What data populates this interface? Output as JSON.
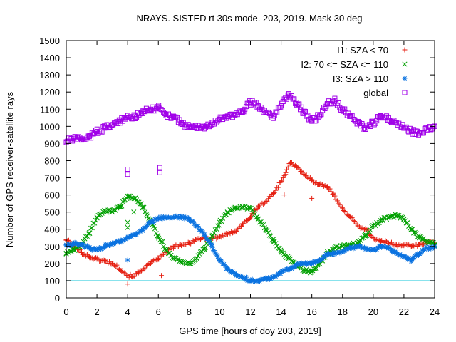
{
  "chart_data": {
    "type": "scatter",
    "title": "NRAYS. SISTED rt 30s mode. 203, 2019. Mask 30 deg",
    "xlabel": "GPS time [hours of doy 203, 2019]",
    "ylabel": "Number of GPS receiver-satellite rays",
    "xlim": [
      0,
      24
    ],
    "ylim": [
      0,
      1500
    ],
    "xticks": [
      0,
      2,
      4,
      6,
      8,
      10,
      12,
      14,
      16,
      18,
      20,
      22,
      24
    ],
    "yticks": [
      0,
      100,
      200,
      300,
      400,
      500,
      600,
      700,
      800,
      900,
      1000,
      1100,
      1200,
      1300,
      1400,
      1500
    ],
    "grid": false,
    "legend_position": "top-right",
    "reference_line": {
      "y": 100,
      "color": "#40d0e0"
    },
    "series": [
      {
        "name": "I1: SZA < 70",
        "marker": "+",
        "color": "#e51e10",
        "x": [
          0,
          0.5,
          1,
          1.5,
          2,
          2.5,
          3,
          3.5,
          4,
          4.3,
          4.7,
          5,
          5.5,
          6,
          6.5,
          7,
          7.5,
          8,
          8.5,
          9,
          9.5,
          10,
          10.5,
          11,
          11.5,
          12,
          12.5,
          13,
          13.5,
          14,
          14.3,
          14.6,
          15,
          15.5,
          16,
          16.5,
          17,
          17.5,
          18,
          18.5,
          19,
          19.5,
          20,
          20.5,
          21,
          21.5,
          22,
          22.5,
          23,
          23.5,
          24
        ],
        "y": [
          340,
          300,
          265,
          240,
          225,
          215,
          200,
          170,
          130,
          125,
          145,
          170,
          200,
          230,
          265,
          300,
          305,
          320,
          340,
          350,
          345,
          355,
          370,
          390,
          430,
          470,
          530,
          560,
          610,
          680,
          730,
          790,
          760,
          720,
          690,
          660,
          650,
          590,
          520,
          470,
          420,
          400,
          350,
          330,
          320,
          310,
          310,
          300,
          310,
          330,
          320
        ]
      },
      {
        "name": "I2: 70 <= SZA <= 110",
        "marker": "x",
        "color": "#00a000",
        "x": [
          0,
          0.5,
          1,
          1.5,
          2,
          2.5,
          3,
          3.5,
          4,
          4.5,
          5,
          5.5,
          6,
          6.5,
          7,
          7.5,
          8,
          8.5,
          9,
          9.5,
          10,
          10.5,
          11,
          11.5,
          12,
          12.5,
          13,
          13.5,
          14,
          14.5,
          15,
          15.5,
          16,
          16.5,
          17,
          17.5,
          18,
          18.5,
          19,
          19.5,
          20,
          20.5,
          21,
          21.5,
          22,
          22.5,
          23,
          23.5,
          24
        ],
        "y": [
          260,
          280,
          310,
          380,
          470,
          510,
          500,
          530,
          590,
          580,
          530,
          440,
          360,
          280,
          230,
          210,
          200,
          230,
          290,
          360,
          440,
          500,
          520,
          530,
          520,
          460,
          400,
          330,
          270,
          230,
          190,
          160,
          150,
          200,
          260,
          290,
          300,
          310,
          320,
          360,
          420,
          450,
          470,
          480,
          460,
          400,
          350,
          330,
          310
        ]
      },
      {
        "name": "I3: SZA > 110",
        "marker": "*",
        "color": "#0a72e0",
        "x": [
          0,
          0.5,
          1,
          1.5,
          2,
          2.5,
          3,
          3.5,
          4,
          4.5,
          5,
          5.5,
          6,
          6.5,
          7,
          7.5,
          8,
          8.5,
          9,
          9.5,
          10,
          10.5,
          11,
          11.5,
          12,
          12.5,
          13,
          13.5,
          14,
          14.5,
          15,
          15.5,
          16,
          16.5,
          17,
          17.5,
          18,
          18.5,
          19,
          19.5,
          20,
          20.5,
          21,
          21.5,
          22,
          22.5,
          23,
          23.5,
          24
        ],
        "y": [
          310,
          315,
          310,
          290,
          280,
          300,
          320,
          330,
          350,
          370,
          400,
          440,
          460,
          470,
          470,
          470,
          460,
          420,
          370,
          300,
          220,
          170,
          140,
          120,
          100,
          100,
          110,
          120,
          150,
          170,
          190,
          200,
          200,
          220,
          250,
          260,
          270,
          290,
          300,
          290,
          280,
          300,
          290,
          260,
          240,
          220,
          260,
          290,
          300
        ]
      },
      {
        "name": "global",
        "marker": "square",
        "color": "#a000e8",
        "x": [
          0,
          0.5,
          1,
          1.5,
          2,
          2.5,
          3,
          3.5,
          4,
          4.5,
          5,
          5.5,
          6,
          6.5,
          7,
          7.5,
          8,
          8.5,
          9,
          9.5,
          10,
          10.5,
          11,
          11.5,
          12,
          12.5,
          13,
          13.5,
          14,
          14.5,
          15,
          15.5,
          16,
          16.5,
          17,
          17.5,
          18,
          18.5,
          19,
          19.5,
          20,
          20.5,
          21,
          21.5,
          22,
          22.5,
          23,
          23.5,
          24
        ],
        "y": [
          910,
          930,
          920,
          940,
          970,
          990,
          1010,
          1030,
          1050,
          1060,
          1090,
          1100,
          1110,
          1070,
          1050,
          1020,
          1000,
          990,
          1000,
          1010,
          1040,
          1060,
          1070,
          1090,
          1140,
          1120,
          1080,
          1060,
          1120,
          1190,
          1140,
          1080,
          1030,
          1060,
          1130,
          1150,
          1100,
          1060,
          1020,
          990,
          1020,
          1060,
          1050,
          1020,
          990,
          970,
          960,
          980,
          1000
        ]
      }
    ],
    "outliers": [
      {
        "series": "I1: SZA < 70",
        "x": [
          4.0,
          6.2,
          16.0,
          14.2
        ],
        "y": [
          80,
          130,
          580,
          600
        ]
      },
      {
        "series": "I2: 70 <= SZA <= 110",
        "x": [
          4.0,
          4.0,
          4.4
        ],
        "y": [
          410,
          440,
          500
        ]
      },
      {
        "series": "I3: SZA > 110",
        "x": [
          4.0
        ],
        "y": [
          220
        ]
      },
      {
        "series": "global",
        "x": [
          4.0,
          4.0,
          6.1,
          6.1
        ],
        "y": [
          720,
          750,
          730,
          760
        ]
      }
    ]
  }
}
